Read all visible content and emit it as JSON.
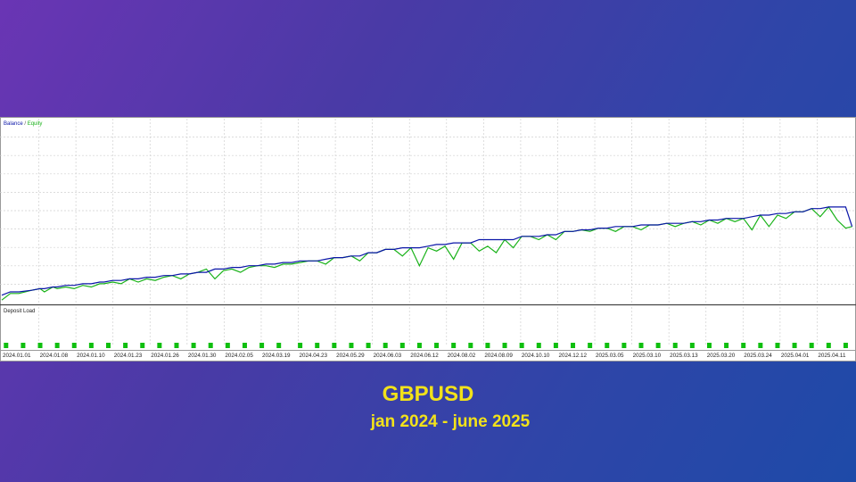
{
  "caption": {
    "title": "GBPUSD",
    "subtitle": "jan 2024 - june 2025"
  },
  "chart_data": {
    "type": "line",
    "legend": {
      "balance": "Balance",
      "separator": " / ",
      "equity": "Equity",
      "position": "top-left"
    },
    "subpanel_label": "Deposit Load",
    "grid": true,
    "colors": {
      "balance": "#0b16a8",
      "equity": "#19b219",
      "deposit_load": "#0fbf0f"
    },
    "x_tick_labels": [
      "2024.01.01",
      "2024.01.08",
      "2024.01.10",
      "2024.01.23",
      "2024.01.26",
      "2024.01.30",
      "2024.02.05",
      "2024.03.19",
      "2024.04.23",
      "2024.05.29",
      "2024.06.03",
      "2024.06.12",
      "2024.08.02",
      "2024.08.09",
      "2024.10.10",
      "2024.12.12",
      "2025.03.05",
      "2025.03.10",
      "2025.03.13",
      "2025.03.20",
      "2025.03.24",
      "2025.04.01",
      "2025.04.11"
    ],
    "y_range": [
      0,
      100
    ],
    "series": [
      {
        "name": "Balance",
        "x": [
          0,
          2,
          4,
          7,
          9,
          10,
          12,
          13,
          15,
          17,
          19,
          21,
          23,
          24,
          26,
          28,
          30,
          32,
          34,
          36,
          38,
          40,
          42,
          44,
          46,
          48,
          50,
          52,
          54,
          56,
          58,
          60,
          62,
          64,
          66,
          68,
          70,
          72,
          74,
          76,
          78,
          80,
          82,
          84,
          86,
          88,
          90,
          92,
          94,
          96,
          98,
          100,
          102,
          104,
          106,
          108,
          110,
          112,
          114,
          116,
          118,
          120,
          122,
          124,
          126,
          128,
          130,
          132,
          134,
          136,
          138,
          140,
          142,
          144,
          146,
          148,
          150,
          152,
          154,
          156,
          158,
          160,
          162,
          164,
          166,
          168,
          170,
          172,
          174,
          176,
          178,
          180,
          182,
          184,
          186,
          188,
          190,
          192,
          194,
          196,
          198,
          199.5
        ],
        "y": [
          4,
          6,
          6,
          7,
          8,
          8,
          9,
          9,
          10,
          10,
          11,
          11,
          12,
          12,
          13,
          13,
          14,
          14,
          15,
          15,
          16,
          16,
          17,
          17,
          18,
          18,
          20,
          20,
          21,
          21,
          22,
          22,
          23,
          23,
          24,
          24,
          25,
          25,
          25,
          26,
          27,
          27,
          28,
          28,
          30,
          30,
          32,
          32,
          33,
          33,
          33,
          34,
          35,
          35,
          36,
          36,
          36,
          38,
          38,
          38,
          38,
          38,
          40,
          40,
          40,
          41,
          41,
          43,
          43,
          44,
          44,
          45,
          45,
          46,
          46,
          46,
          47,
          47,
          47,
          48,
          48,
          48,
          49,
          49,
          50,
          50,
          51,
          51,
          51,
          52,
          53,
          53,
          54,
          54,
          55,
          55,
          57,
          57,
          58,
          58,
          58,
          46
        ]
      },
      {
        "name": "Equity",
        "x": [
          0,
          2,
          4,
          7,
          9,
          10,
          12,
          13,
          15,
          17,
          19,
          21,
          23,
          24,
          26,
          28,
          30,
          32,
          34,
          36,
          38,
          40,
          42,
          44,
          46,
          48,
          50,
          52,
          54,
          56,
          58,
          60,
          62,
          64,
          66,
          68,
          70,
          72,
          74,
          76,
          78,
          80,
          82,
          84,
          86,
          88,
          90,
          92,
          94,
          96,
          98,
          100,
          102,
          104,
          106,
          108,
          110,
          112,
          114,
          116,
          118,
          120,
          122,
          124,
          126,
          128,
          130,
          132,
          134,
          136,
          138,
          140,
          142,
          144,
          146,
          148,
          150,
          152,
          154,
          156,
          158,
          160,
          162,
          164,
          166,
          168,
          170,
          172,
          174,
          176,
          178,
          180,
          182,
          184,
          186,
          188,
          190,
          192,
          194,
          196,
          198,
          199.5
        ],
        "y": [
          1,
          5,
          5,
          7,
          8,
          6,
          9,
          8,
          9,
          8,
          10,
          9,
          11,
          11,
          12,
          11,
          14,
          12,
          14,
          13,
          15,
          16,
          14,
          17,
          18,
          20,
          14,
          19,
          20,
          18,
          21,
          22,
          22,
          21,
          23,
          23,
          24,
          25,
          25,
          23,
          27,
          27,
          28,
          25,
          30,
          30,
          32,
          32,
          28,
          33,
          22,
          33,
          31,
          34,
          26,
          36,
          36,
          31,
          34,
          30,
          38,
          33,
          40,
          40,
          38,
          41,
          38,
          43,
          43,
          44,
          43,
          45,
          45,
          43,
          46,
          46,
          44,
          47,
          47,
          48,
          46,
          48,
          49,
          47,
          50,
          48,
          51,
          49,
          51,
          44,
          53,
          46,
          53,
          51,
          55,
          55,
          57,
          52,
          58,
          50,
          45,
          46
        ]
      },
      {
        "name": "Deposit Load",
        "markers_x": [
          1,
          5,
          9,
          13,
          17,
          21,
          25,
          29,
          33,
          37,
          41,
          45,
          49,
          53,
          57,
          61,
          65,
          70,
          74,
          78,
          82,
          86,
          90,
          94,
          98,
          102,
          106,
          110,
          114,
          118,
          122,
          126,
          130,
          134,
          138,
          142,
          146,
          150,
          154,
          158,
          162,
          166,
          170,
          174,
          178,
          182,
          186,
          190,
          194,
          198
        ]
      }
    ]
  }
}
